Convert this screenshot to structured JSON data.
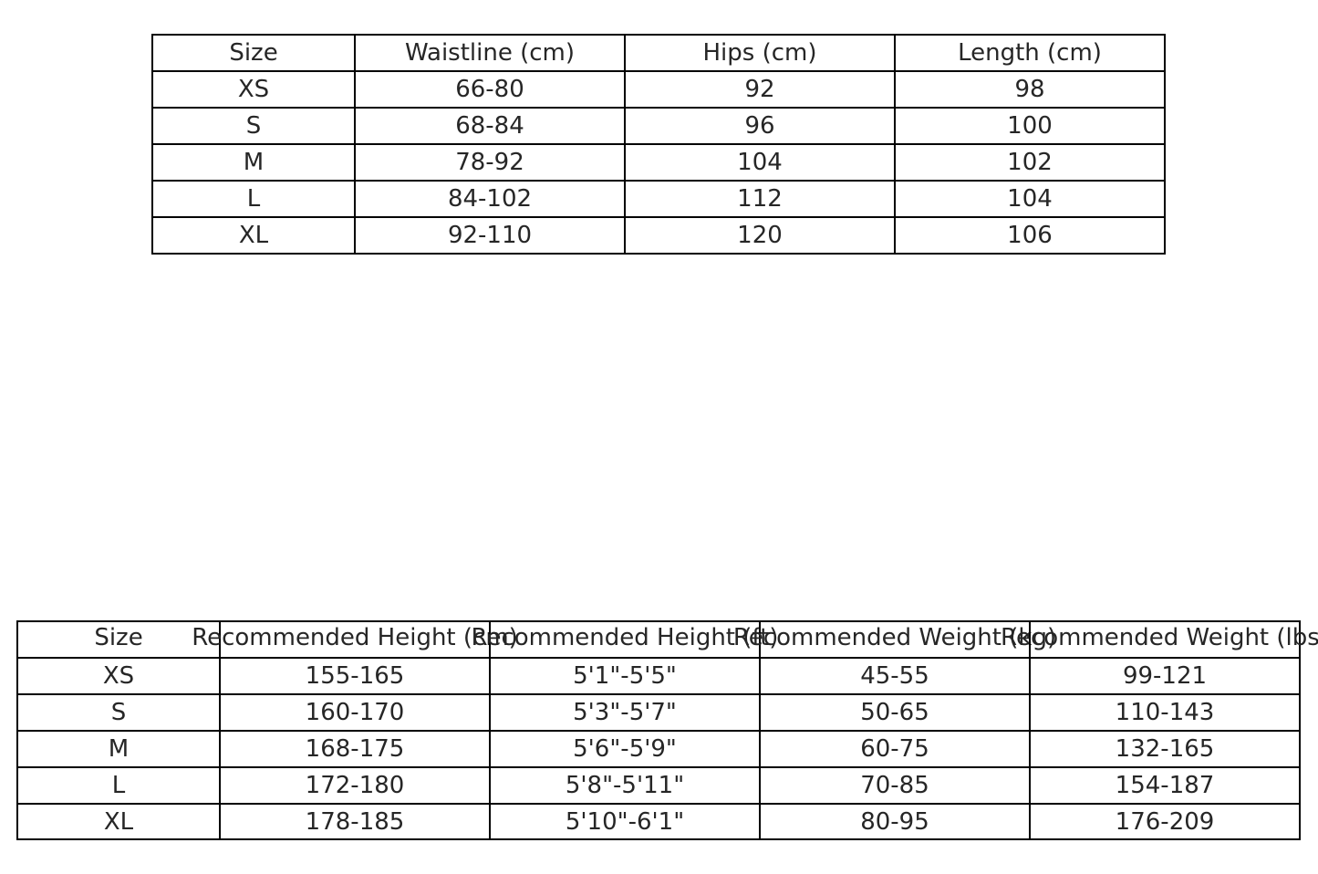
{
  "chart_data": [
    {
      "type": "table",
      "columns": [
        "Size",
        "Waistline (cm)",
        "Hips (cm)",
        "Length (cm)"
      ],
      "rows": [
        [
          "XS",
          "66-80",
          "92",
          "98"
        ],
        [
          "S",
          "68-84",
          "96",
          "100"
        ],
        [
          "M",
          "78-92",
          "104",
          "102"
        ],
        [
          "L",
          "84-102",
          "112",
          "104"
        ],
        [
          "XL",
          "92-110",
          "120",
          "106"
        ]
      ]
    },
    {
      "type": "table",
      "columns": [
        "Size",
        "Recommended Height (cm)",
        "Recommended Height (ft)",
        "Recommended Weight (kg)",
        "Recommended Weight (lbs)"
      ],
      "rows": [
        [
          "XS",
          "155-165",
          "5'1\"-5'5\"",
          "45-55",
          "99-121"
        ],
        [
          "S",
          "160-170",
          "5'3\"-5'7\"",
          "50-65",
          "110-143"
        ],
        [
          "M",
          "168-175",
          "5'6\"-5'9\"",
          "60-75",
          "132-165"
        ],
        [
          "L",
          "172-180",
          "5'8\"-5'11\"",
          "70-85",
          "154-187"
        ],
        [
          "XL",
          "178-185",
          "5'10\"-6'1\"",
          "80-95",
          "176-209"
        ]
      ]
    }
  ]
}
